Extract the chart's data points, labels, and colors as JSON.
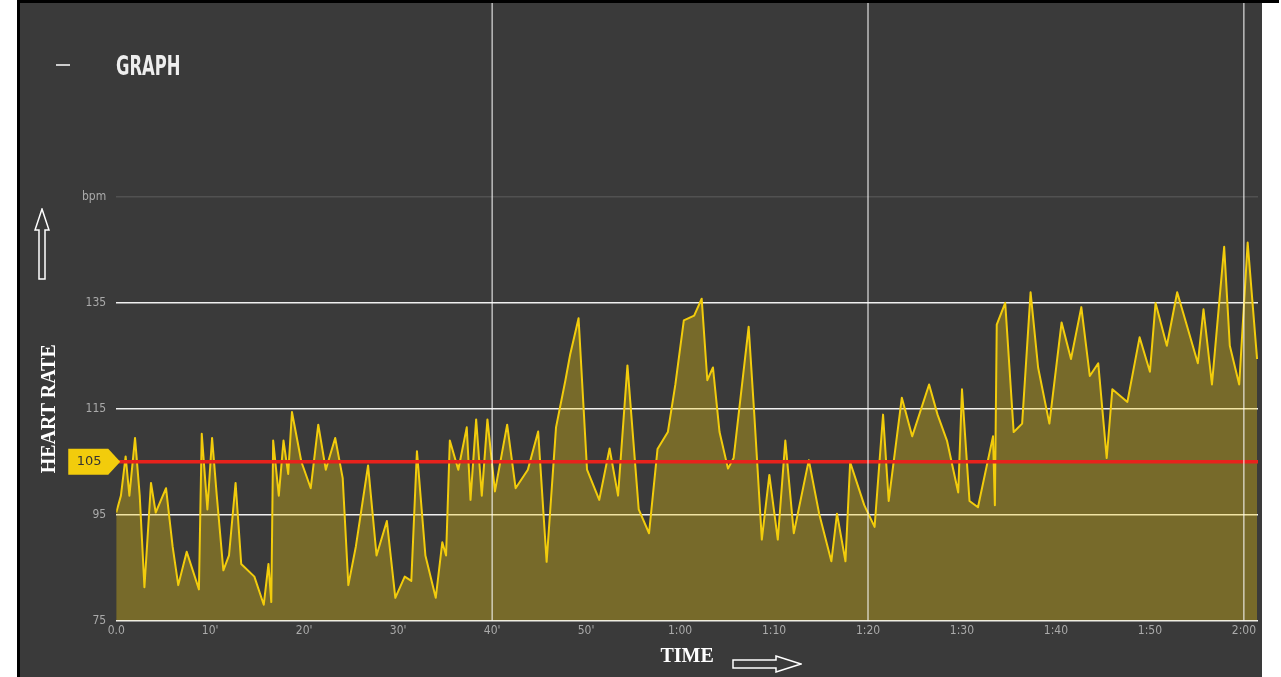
{
  "chart_data": {
    "type": "area",
    "title": "GRAPH",
    "xlabel": "TIME",
    "ylabel": "HEART RATE",
    "x": [
      0,
      0.5,
      1.0,
      1.4,
      2.0,
      2.5,
      3.0,
      3.7,
      4.2,
      5.3,
      6.0,
      6.6,
      7.5,
      8.8,
      9.1,
      9.7,
      10.2,
      10.7,
      11.4,
      12.0,
      12.7,
      13.3,
      14.7,
      15.7,
      16.2,
      16.5,
      16.7,
      17.3,
      17.8,
      18.3,
      18.7,
      19.7,
      20.7,
      21.5,
      22.3,
      23.3,
      24.1,
      24.7,
      25.5,
      26.8,
      27.7,
      28.8,
      29.7,
      30.7,
      31.4,
      32.0,
      32.9,
      34.0,
      34.7,
      35.1,
      35.5,
      36.4,
      37.3,
      37.7,
      38.3,
      38.9,
      39.5,
      40.3,
      41.6,
      42.5,
      43.8,
      44.9,
      45.8,
      46.8,
      47.8,
      48.3,
      49.2,
      50.1,
      51.4,
      52.5,
      53.4,
      54.4,
      55.6,
      56.7,
      57.6,
      58.7,
      59.5,
      60.4,
      61.5,
      62.3,
      62.9,
      63.5,
      64.2,
      65.1,
      65.7,
      67.3,
      67.9,
      68.7,
      69.5,
      70.4,
      71.2,
      72.1,
      73.7,
      74.8,
      76.1,
      76.7,
      77.6,
      78.1,
      79.6,
      80.7,
      81.6,
      82.2,
      83.6,
      84.7,
      86.5,
      87.4,
      88.4,
      89.6,
      90.0,
      90.8,
      91.7,
      93.3,
      93.5,
      93.7,
      94.6,
      95.5,
      96.4,
      97.3,
      98.1,
      99.3,
      100.6,
      101.6,
      102.7,
      103.6,
      104.5,
      105.4,
      106.0,
      107.6,
      108.9,
      110.0,
      110.6,
      111.8,
      112.9,
      115.1,
      115.7,
      116.6,
      117.9,
      118.5,
      119.5,
      120.4,
      121.4
    ],
    "series": [
      {
        "color": "#f2cc0c",
        "values": [
          95.4,
          98.6,
          106,
          98.6,
          109.5,
          98.6,
          81.3,
          101,
          95.4,
          100,
          89,
          81.7,
          88,
          80.9,
          110.3,
          96,
          109.5,
          98.6,
          84.5,
          87.3,
          101,
          85.7,
          83.3,
          78,
          85.7,
          78.5,
          109,
          98.6,
          109,
          102.7,
          114.4,
          105,
          100,
          112,
          103.5,
          109.5,
          101.9,
          81.7,
          89,
          104.3,
          87.3,
          93.8,
          79.3,
          83.3,
          82.5,
          107,
          87.3,
          79.3,
          89.8,
          87.3,
          109,
          103.5,
          111.5,
          97.8,
          113,
          98.6,
          113,
          99.4,
          112,
          100,
          103.5,
          110.7,
          86.1,
          111.5,
          120.4,
          125.2,
          132.1,
          103.5,
          97.8,
          107.5,
          98.6,
          123.2,
          96,
          91.5,
          107.4,
          110.6,
          119.6,
          131.7,
          132.6,
          135.8,
          120.4,
          122.8,
          110.6,
          103.7,
          105.7,
          130.5,
          113.9,
          90.3,
          102.5,
          90.3,
          109,
          91.5,
          105.3,
          95.2,
          86.2,
          95.2,
          86.2,
          104.9,
          96.8,
          92.7,
          113.9,
          97.6,
          117.1,
          109.8,
          119.6,
          113.9,
          109,
          99.2,
          118.7,
          97.6,
          96.4,
          109.8,
          96.8,
          130.9,
          135,
          110.6,
          112.2,
          137,
          122.8,
          112.2,
          131.3,
          124.4,
          134.2,
          121.2,
          123.6,
          105.7,
          118.7,
          116.3,
          128.5,
          122,
          135,
          126.9,
          137,
          123.6,
          133.8,
          119.6,
          145.6,
          126.9,
          119.6,
          146.4,
          124.4
        ]
      }
    ],
    "xlim": [
      0,
      121.5
    ],
    "xticks": [
      {
        "value": 0,
        "label": "0.0"
      },
      {
        "value": 10,
        "label": "10'"
      },
      {
        "value": 20,
        "label": "20'"
      },
      {
        "value": 30,
        "label": "30'"
      },
      {
        "value": 40,
        "label": "40'"
      },
      {
        "value": 50,
        "label": "50'"
      },
      {
        "value": 60,
        "label": "1:00"
      },
      {
        "value": 70,
        "label": "1:10"
      },
      {
        "value": 80,
        "label": "1:20"
      },
      {
        "value": 90,
        "label": "1:30"
      },
      {
        "value": 100,
        "label": "1:40"
      },
      {
        "value": 110,
        "label": "1:50"
      },
      {
        "value": 120,
        "label": "2:00"
      }
    ],
    "ylim": [
      75,
      155
    ],
    "yticks": [
      75,
      95,
      115,
      135,
      {
        "value": 155,
        "label": "bpm"
      }
    ],
    "ref_lines": [
      {
        "axis": "y",
        "value": 105,
        "label": "105",
        "color": "#e8221c"
      },
      {
        "axis": "x",
        "value": 40,
        "color": "#ffffff"
      },
      {
        "axis": "x",
        "value": 80,
        "color": "#ffffff"
      },
      {
        "axis": "x",
        "value": 120,
        "color": "#ffffff"
      }
    ],
    "grid": "y",
    "legend": false,
    "marker": "none",
    "line_style": "solid"
  }
}
